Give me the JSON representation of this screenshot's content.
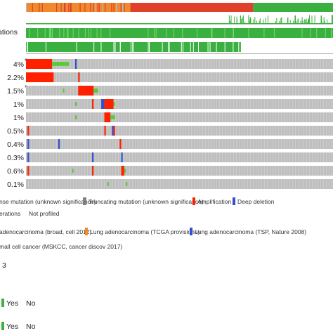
{
  "chart_data": {
    "type": "oncoprint",
    "header_tracks": [
      {
        "label": "ations",
        "kind": "study"
      },
      {
        "label": "",
        "kind": "bars"
      },
      {
        "label": "",
        "kind": "mutations"
      },
      {
        "label": "",
        "kind": "profiled"
      }
    ],
    "genes": [
      {
        "percent": "4%",
        "asterisk": true,
        "alterations": [
          {
            "from": 0.0,
            "to": 0.085,
            "type": "amplification"
          },
          {
            "from": 0.085,
            "to": 0.14,
            "type": "mutation_vus"
          },
          {
            "from": 0.16,
            "to": 0.165,
            "type": "deep_deletion"
          }
        ]
      },
      {
        "percent": "2.2%",
        "asterisk": false,
        "alterations": [
          {
            "from": 0.0,
            "to": 0.09,
            "type": "amplification"
          },
          {
            "from": 0.17,
            "to": 0.175,
            "type": "amplification"
          }
        ]
      },
      {
        "percent": "1.5%",
        "asterisk": true,
        "alterations": [
          {
            "from": 0.12,
            "to": 0.125,
            "type": "mutation_vus"
          },
          {
            "from": 0.17,
            "to": 0.22,
            "type": "amplification"
          },
          {
            "from": 0.22,
            "to": 0.235,
            "type": "mutation_vus"
          }
        ]
      },
      {
        "percent": "1%",
        "asterisk": false,
        "alterations": [
          {
            "from": 0.16,
            "to": 0.165,
            "type": "mutation_vus"
          },
          {
            "from": 0.215,
            "to": 0.22,
            "type": "amplification"
          },
          {
            "from": 0.245,
            "to": 0.255,
            "type": "deep_deletion"
          },
          {
            "from": 0.255,
            "to": 0.285,
            "type": "amplification"
          },
          {
            "from": 0.285,
            "to": 0.29,
            "type": "mutation_vus"
          }
        ]
      },
      {
        "percent": "1%",
        "asterisk": false,
        "alterations": [
          {
            "from": 0.16,
            "to": 0.165,
            "type": "mutation_vus"
          },
          {
            "from": 0.255,
            "to": 0.275,
            "type": "amplification"
          },
          {
            "from": 0.275,
            "to": 0.29,
            "type": "mutation_vus"
          }
        ]
      },
      {
        "percent": "0.5%",
        "asterisk": false,
        "alterations": [
          {
            "from": 0.005,
            "to": 0.01,
            "type": "amplification"
          },
          {
            "from": 0.255,
            "to": 0.26,
            "type": "amplification"
          },
          {
            "from": 0.28,
            "to": 0.285,
            "type": "deep_deletion"
          },
          {
            "from": 0.285,
            "to": 0.29,
            "type": "amplification"
          }
        ]
      },
      {
        "percent": "0.4%",
        "asterisk": false,
        "alterations": [
          {
            "from": 0.005,
            "to": 0.01,
            "type": "deep_deletion"
          },
          {
            "from": 0.105,
            "to": 0.11,
            "type": "deep_deletion"
          },
          {
            "from": 0.305,
            "to": 0.31,
            "type": "amplification"
          }
        ]
      },
      {
        "percent": "0.3%",
        "asterisk": false,
        "alterations": [
          {
            "from": 0.005,
            "to": 0.01,
            "type": "deep_deletion"
          },
          {
            "from": 0.215,
            "to": 0.22,
            "type": "deep_deletion"
          },
          {
            "from": 0.31,
            "to": 0.315,
            "type": "deep_deletion"
          }
        ]
      },
      {
        "percent": "0.6%",
        "asterisk": false,
        "alterations": [
          {
            "from": 0.005,
            "to": 0.01,
            "type": "amplification"
          },
          {
            "from": 0.15,
            "to": 0.155,
            "type": "mutation_vus"
          },
          {
            "from": 0.215,
            "to": 0.22,
            "type": "amplification"
          },
          {
            "from": 0.31,
            "to": 0.32,
            "type": "amplification"
          },
          {
            "from": 0.32,
            "to": 0.325,
            "type": "mutation_vus"
          }
        ]
      },
      {
        "percent": "0.1%",
        "asterisk": false,
        "alterations": [
          {
            "from": 0.265,
            "to": 0.27,
            "type": "mutation_vus"
          },
          {
            "from": 0.325,
            "to": 0.33,
            "type": "mutation_vus"
          }
        ]
      }
    ],
    "study_segments": [
      {
        "from": 0.0,
        "to": 0.34,
        "study": "tcga_provisional"
      },
      {
        "from": 0.34,
        "to": 0.74,
        "study": "broad_cell2012"
      },
      {
        "from": 0.74,
        "to": 1.0,
        "study": "tsp_nature2008"
      }
    ],
    "legend": {
      "mutation_row": [
        {
          "key": "mutation_vus",
          "label": "nse mutation (unknown significance)"
        },
        {
          "key": "truncating_vus",
          "label": "Truncating mutation (unknown significance)"
        },
        {
          "key": "amplification",
          "label": "Amplification"
        },
        {
          "key": "deep_deletion",
          "label": "Deep deletion"
        }
      ],
      "profile_row": [
        {
          "key": "no_alterations",
          "label": "erations"
        },
        {
          "key": "not_profiled",
          "label": "Not profiled"
        }
      ],
      "study_row1": [
        {
          "key": "broad_cell2012",
          "label": "adenocarcinoma (broad, cell 2012)"
        },
        {
          "key": "tcga_provisional",
          "label": "Lung adenocarcinoma (TCGA provisiona)"
        },
        {
          "key": "tsp_nature2008",
          "label": "Lung adenocarcinoma (TSP, Nature 2008)"
        }
      ],
      "study_row2": "mall cell cancer (MSKCC, cancer discov 2017)",
      "digit": "3",
      "yesno_1": {
        "yes": "Yes",
        "no": "No"
      },
      "yesno_2": {
        "yes": "Yes",
        "no": "No"
      }
    },
    "colors": {
      "cell_bg": "#bfbfbf",
      "amplification": "#ff2000",
      "deep_deletion": "#3050d0",
      "mutation_vus": "#55cc33",
      "truncating_vus": "#808080",
      "tcga_provisional": "#f08a2c",
      "broad_cell2012": "#e0412a",
      "tsp_nature2008": "#3ab040",
      "sclc_mskcc": "#bbbbbb",
      "yes": "#3ab040"
    }
  }
}
